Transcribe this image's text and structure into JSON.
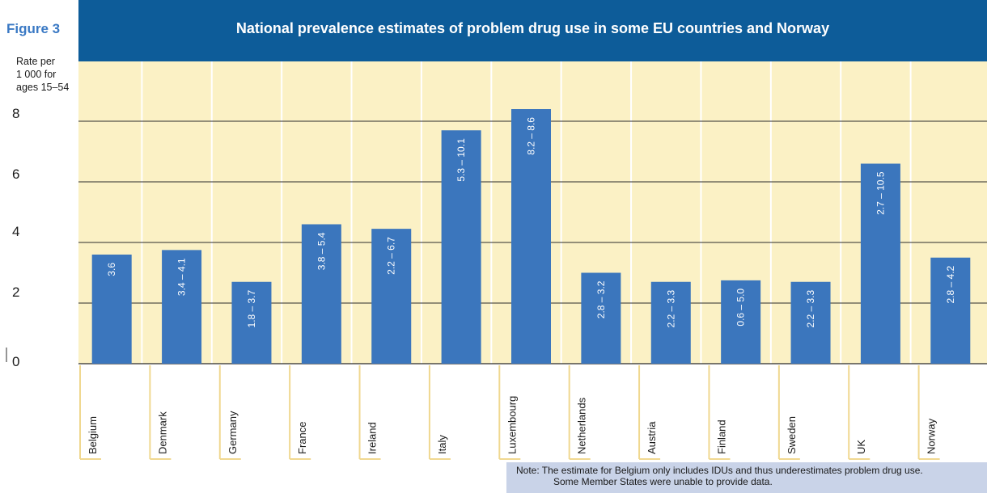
{
  "figure_label": "Figure 3",
  "chart_data": {
    "type": "bar",
    "title": "National prevalence estimates of problem drug use in some EU countries and Norway",
    "ylabel": [
      "Rate per",
      "1 000 for",
      "ages 15–54"
    ],
    "ylim": [
      0,
      8.5
    ],
    "yticks": [
      "0",
      "2",
      "4",
      "6",
      "8"
    ],
    "categories": [
      "Belgium",
      "Denmark",
      "Germany",
      "France",
      "Ireland",
      "Italy",
      "Luxembourg",
      "Netherlands",
      "Austria",
      "Finland",
      "Sweden",
      "UK",
      "Norway"
    ],
    "values": [
      3.6,
      3.75,
      2.7,
      4.6,
      4.45,
      7.7,
      8.4,
      3.0,
      2.7,
      2.75,
      2.7,
      6.6,
      3.5
    ],
    "data_labels": [
      "3.6",
      "3.4 – 4.1",
      "1.8 – 3.7",
      "3.8 – 5.4",
      "2.2 – 6.7",
      "5.3 – 10.1",
      "8.2 – 8.6",
      "2.8 – 3.2",
      "2.2 – 3.3",
      "0.6 – 5.0",
      "2.2 – 3.3",
      "2.7 – 10.5",
      "2.8 – 4.2"
    ],
    "grid": true,
    "colors": {
      "bar": "#3b76bd",
      "background": "#fbf1c5",
      "header": "#0d5c99",
      "figure_label": "#3a79c4",
      "category_rule": "#f0d890"
    }
  },
  "note": {
    "line1": "Note: The estimate for Belgium only includes IDUs and thus underestimates problem drug use.",
    "line2": "Some Member States were unable to provide data."
  }
}
